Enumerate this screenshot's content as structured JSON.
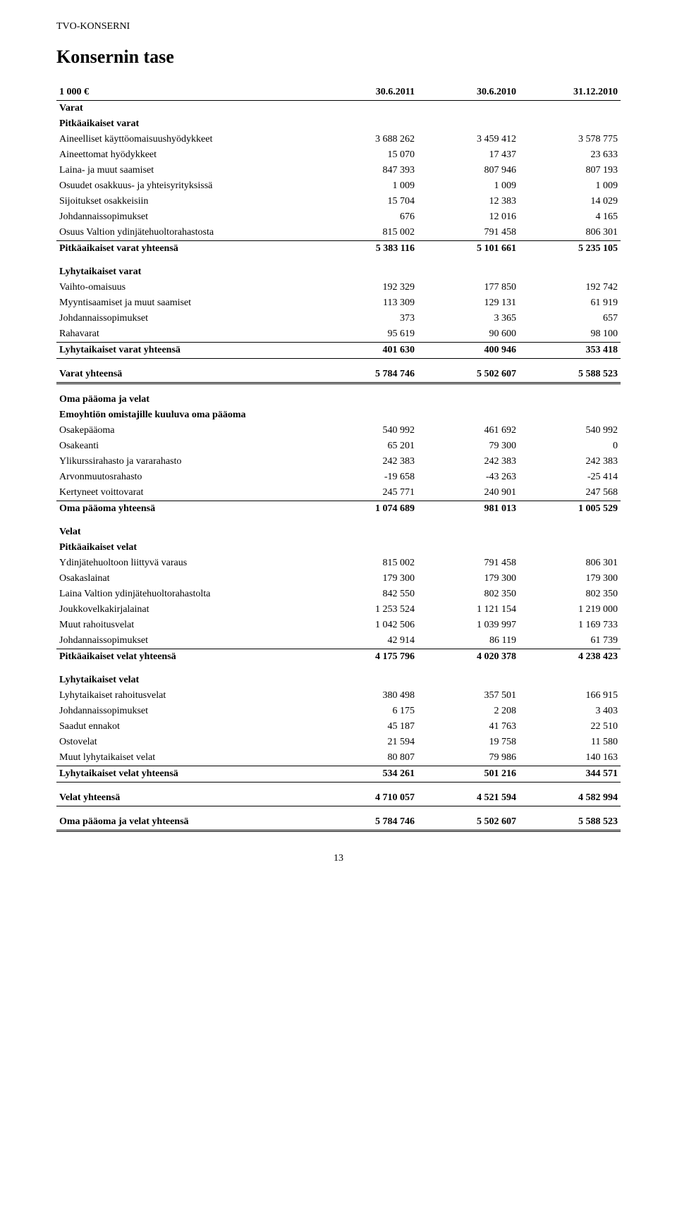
{
  "header": "TVO-KONSERNI",
  "title": "Konsernin tase",
  "tableHeader": {
    "unit": "1 000 €",
    "c1": "30.6.2011",
    "c2": "30.6.2010",
    "c3": "31.12.2010"
  },
  "sections": [
    {
      "title": "Varat",
      "groups": [
        {
          "title": "Pitkäaikaiset varat",
          "rows": [
            {
              "label": "Aineelliset käyttöomaisuushyödykkeet",
              "c1": "3 688 262",
              "c2": "3 459 412",
              "c3": "3 578 775"
            },
            {
              "label": "Aineettomat hyödykkeet",
              "c1": "15 070",
              "c2": "17 437",
              "c3": "23 633"
            },
            {
              "label": "Laina- ja muut saamiset",
              "c1": "847 393",
              "c2": "807 946",
              "c3": "807 193"
            },
            {
              "label": "Osuudet osakkuus- ja yhteisyrityksissä",
              "c1": "1 009",
              "c2": "1 009",
              "c3": "1 009"
            },
            {
              "label": "Sijoitukset osakkeisiin",
              "c1": "15 704",
              "c2": "12 383",
              "c3": "14 029"
            },
            {
              "label": "Johdannaissopimukset",
              "c1": "676",
              "c2": "12 016",
              "c3": "4 165"
            },
            {
              "label": "Osuus Valtion ydinjätehuoltorahastosta",
              "c1": "815 002",
              "c2": "791 458",
              "c3": "806 301",
              "thin": true
            }
          ],
          "total": {
            "label": "Pitkäaikaiset varat yhteensä",
            "c1": "5 383 116",
            "c2": "5 101 661",
            "c3": "5 235 105"
          }
        },
        {
          "title": "Lyhytaikaiset varat",
          "rows": [
            {
              "label": "Vaihto-omaisuus",
              "c1": "192 329",
              "c2": "177 850",
              "c3": "192 742"
            },
            {
              "label": "Myyntisaamiset ja muut saamiset",
              "c1": "113 309",
              "c2": "129 131",
              "c3": "61 919"
            },
            {
              "label": "Johdannaissopimukset",
              "c1": "373",
              "c2": "3 365",
              "c3": "657"
            },
            {
              "label": "Rahavarat",
              "c1": "95 619",
              "c2": "90 600",
              "c3": "98 100",
              "thin": true
            }
          ],
          "total": {
            "label": "Lyhytaikaiset varat yhteensä",
            "c1": "401 630",
            "c2": "400 946",
            "c3": "353 418",
            "heavy": true
          }
        }
      ],
      "grand": {
        "label": "Varat yhteensä",
        "c1": "5 784 746",
        "c2": "5 502 607",
        "c3": "5 588 523",
        "double": true
      }
    },
    {
      "title": "Oma pääoma ja velat",
      "groups": [
        {
          "title": "Emoyhtiön omistajille kuuluva oma pääoma",
          "rows": [
            {
              "label": "Osakepääoma",
              "c1": "540 992",
              "c2": "461 692",
              "c3": "540 992"
            },
            {
              "label": "Osakeanti",
              "c1": "65 201",
              "c2": "79 300",
              "c3": "0"
            },
            {
              "label": "Ylikurssirahasto ja vararahasto",
              "c1": "242 383",
              "c2": "242 383",
              "c3": "242 383"
            },
            {
              "label": "Arvonmuutosrahasto",
              "c1": "-19 658",
              "c2": "-43 263",
              "c3": "-25 414"
            },
            {
              "label": "Kertyneet voittovarat",
              "c1": "245 771",
              "c2": "240 901",
              "c3": "247 568",
              "thin": true
            }
          ],
          "total": {
            "label": "Oma pääoma yhteensä",
            "c1": "1 074 689",
            "c2": "981 013",
            "c3": "1 005 529"
          }
        },
        {
          "title": "Velat",
          "subgroups": [
            {
              "title": "Pitkäaikaiset velat",
              "rows": [
                {
                  "label": "Ydinjätehuoltoon liittyvä varaus",
                  "c1": "815 002",
                  "c2": "791 458",
                  "c3": "806 301"
                },
                {
                  "label": "Osakaslainat",
                  "c1": "179 300",
                  "c2": "179 300",
                  "c3": "179 300"
                },
                {
                  "label": "Laina Valtion ydinjätehuoltorahastolta",
                  "c1": "842 550",
                  "c2": "802 350",
                  "c3": "802 350"
                },
                {
                  "label": "Joukkovelkakirjalainat",
                  "c1": "1 253 524",
                  "c2": "1 121 154",
                  "c3": "1 219 000"
                },
                {
                  "label": "Muut rahoitusvelat",
                  "c1": "1 042 506",
                  "c2": "1 039 997",
                  "c3": "1 169 733"
                },
                {
                  "label": "Johdannaissopimukset",
                  "c1": "42 914",
                  "c2": "86 119",
                  "c3": "61 739",
                  "thin": true
                }
              ],
              "total": {
                "label": "Pitkäaikaiset velat yhteensä",
                "c1": "4 175 796",
                "c2": "4 020 378",
                "c3": "4 238 423"
              }
            },
            {
              "title": "Lyhytaikaiset velat",
              "rows": [
                {
                  "label": "Lyhytaikaiset rahoitusvelat",
                  "c1": "380 498",
                  "c2": "357 501",
                  "c3": "166 915"
                },
                {
                  "label": "Johdannaissopimukset",
                  "c1": "6 175",
                  "c2": "2 208",
                  "c3": "3 403"
                },
                {
                  "label": "Saadut ennakot",
                  "c1": "45 187",
                  "c2": "41 763",
                  "c3": "22 510"
                },
                {
                  "label": "Ostovelat",
                  "c1": "21 594",
                  "c2": "19 758",
                  "c3": "11 580"
                },
                {
                  "label": "Muut lyhytaikaiset velat",
                  "c1": "80 807",
                  "c2": "79 986",
                  "c3": "140 163",
                  "thin": true
                }
              ],
              "total": {
                "label": "Lyhytaikaiset velat yhteensä",
                "c1": "534 261",
                "c2": "501 216",
                "c3": "344 571",
                "heavy": true
              }
            }
          ],
          "total": {
            "label": "Velat yhteensä",
            "c1": "4 710 057",
            "c2": "4 521 594",
            "c3": "4 582 994",
            "heavy": true
          }
        }
      ],
      "grand": {
        "label": "Oma pääoma ja velat yhteensä",
        "c1": "5 784 746",
        "c2": "5 502 607",
        "c3": "5 588 523",
        "double": true
      }
    }
  ],
  "pageNumber": "13"
}
